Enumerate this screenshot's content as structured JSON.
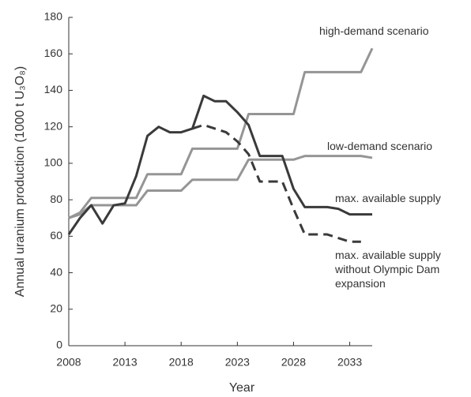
{
  "chart_data": {
    "type": "line",
    "x_label": "Year",
    "y_label": "Annual uranium production (1000 t U₃O₈)",
    "x": [
      2008,
      2009,
      2010,
      2011,
      2012,
      2013,
      2014,
      2015,
      2016,
      2017,
      2018,
      2019,
      2020,
      2021,
      2022,
      2023,
      2024,
      2025,
      2026,
      2027,
      2028,
      2029,
      2030,
      2031,
      2032,
      2033,
      2034,
      2035
    ],
    "series": [
      {
        "name": "high-demand scenario",
        "color": "#959595",
        "dash": false,
        "values": [
          70,
          73,
          81,
          81,
          81,
          81,
          81,
          94,
          94,
          94,
          94,
          108,
          108,
          108,
          108,
          108,
          127,
          127,
          127,
          127,
          127,
          150,
          150,
          150,
          150,
          150,
          150,
          163
        ]
      },
      {
        "name": "low-demand scenario",
        "color": "#959595",
        "dash": false,
        "values": [
          70,
          72,
          77,
          77,
          77,
          77,
          77,
          85,
          85,
          85,
          85,
          91,
          91,
          91,
          91,
          91,
          102,
          102,
          102,
          102,
          102,
          104,
          104,
          104,
          104,
          104,
          104,
          103
        ]
      },
      {
        "name": "max. available supply",
        "color": "#3a3a3a",
        "dash": false,
        "values": [
          61,
          70,
          77,
          67,
          77,
          78,
          93,
          115,
          120,
          117,
          117,
          119,
          137,
          134,
          134,
          128,
          121,
          104,
          104,
          104,
          86,
          76,
          76,
          76,
          75,
          72,
          72,
          72
        ]
      },
      {
        "name": "max. available supply without Olympic Dam expansion",
        "color": "#3a3a3a",
        "dash": true,
        "values": [
          null,
          null,
          null,
          null,
          null,
          null,
          null,
          null,
          null,
          null,
          null,
          119,
          121,
          119,
          117,
          112,
          105,
          90,
          90,
          90,
          75,
          61,
          61,
          61,
          59,
          57,
          57,
          null
        ]
      }
    ],
    "xlim": [
      2008,
      2035
    ],
    "xticks": [
      2008,
      2013,
      2018,
      2023,
      2028,
      2033
    ],
    "ylim": [
      0,
      180
    ],
    "yticks": [
      0,
      20,
      40,
      60,
      80,
      100,
      120,
      140,
      160,
      180
    ]
  }
}
